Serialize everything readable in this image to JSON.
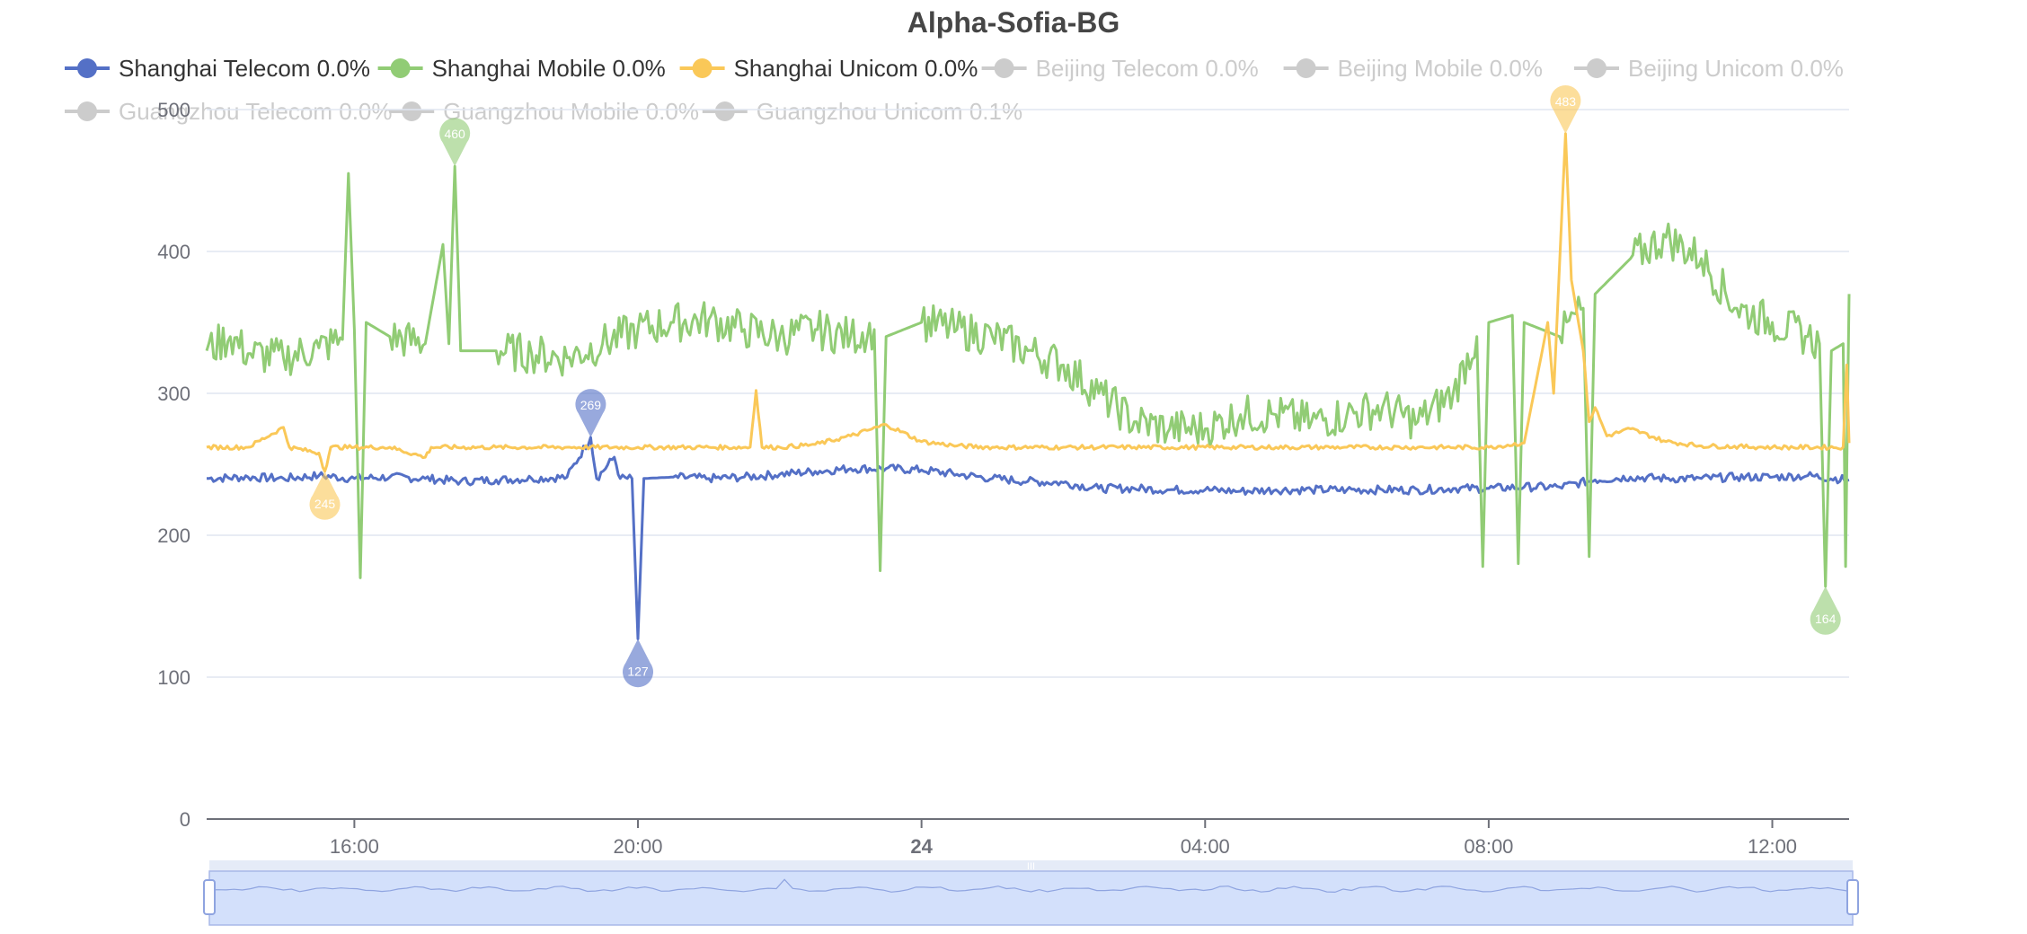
{
  "chart_data": {
    "type": "line",
    "title": "Alpha-Sofia-BG",
    "xlabel": "",
    "ylabel": "",
    "ylim": [
      0,
      500
    ],
    "y_ticks": [
      "0",
      "100",
      "200",
      "300",
      "400",
      "500"
    ],
    "x_range": [
      "13:55",
      "13:05 (+1 day)"
    ],
    "x_ticks": [
      {
        "label": "16:00",
        "x": "16:00",
        "bold": false
      },
      {
        "label": "20:00",
        "x": "20:00",
        "bold": false
      },
      {
        "label": "24",
        "x": "24:00",
        "bold": true
      },
      {
        "label": "04:00",
        "x": "04:00",
        "bold": false
      },
      {
        "label": "08:00",
        "x": "08:00",
        "bold": false
      },
      {
        "label": "12:00",
        "x": "12:00",
        "bold": false
      }
    ],
    "grid": true,
    "legend_position": "top",
    "series": [
      {
        "name": "Shanghai Telecom",
        "legend": "Shanghai Telecom 0.0%",
        "color": "#5470c6",
        "visible": true,
        "points": [
          [
            "13:55",
            240
          ],
          [
            "14:30",
            241
          ],
          [
            "15:00",
            240
          ],
          [
            "15:30",
            242
          ],
          [
            "16:00",
            240
          ],
          [
            "16:30",
            241
          ],
          [
            "17:00",
            240
          ],
          [
            "17:30",
            238
          ],
          [
            "18:00",
            239
          ],
          [
            "18:30",
            240
          ],
          [
            "19:00",
            241
          ],
          [
            "19:20",
            269
          ],
          [
            "19:25",
            240
          ],
          [
            "19:40",
            255
          ],
          [
            "19:45",
            240
          ],
          [
            "19:55",
            240
          ],
          [
            "20:00",
            127
          ],
          [
            "20:05",
            240
          ],
          [
            "20:30",
            241
          ],
          [
            "21:00",
            240
          ],
          [
            "21:30",
            241
          ],
          [
            "22:00",
            243
          ],
          [
            "22:30",
            245
          ],
          [
            "23:00",
            247
          ],
          [
            "23:30",
            247
          ],
          [
            "24:00",
            246
          ],
          [
            "00:30",
            243
          ],
          [
            "01:00",
            240
          ],
          [
            "01:30",
            238
          ],
          [
            "02:00",
            237
          ],
          [
            "02:30",
            233
          ],
          [
            "03:00",
            233
          ],
          [
            "03:30",
            232
          ],
          [
            "04:00",
            232
          ],
          [
            "04:30",
            231
          ],
          [
            "05:00",
            232
          ],
          [
            "05:30",
            232
          ],
          [
            "06:00",
            232
          ],
          [
            "06:30",
            232
          ],
          [
            "07:00",
            232
          ],
          [
            "07:30",
            233
          ],
          [
            "08:00",
            233
          ],
          [
            "08:30",
            234
          ],
          [
            "09:00",
            234
          ],
          [
            "09:30",
            239
          ],
          [
            "10:00",
            241
          ],
          [
            "10:30",
            240
          ],
          [
            "11:00",
            240
          ],
          [
            "11:30",
            241
          ],
          [
            "12:00",
            241
          ],
          [
            "12:30",
            242
          ],
          [
            "13:05",
            239
          ]
        ]
      },
      {
        "name": "Shanghai Mobile",
        "legend": "Shanghai Mobile 0.0%",
        "color": "#91cc75",
        "visible": true,
        "points": [
          [
            "13:55",
            330
          ],
          [
            "14:15",
            340
          ],
          [
            "14:30",
            328
          ],
          [
            "15:00",
            325
          ],
          [
            "15:30",
            332
          ],
          [
            "15:50",
            338
          ],
          [
            "15:55",
            455
          ],
          [
            "16:00",
            345
          ],
          [
            "16:05",
            170
          ],
          [
            "16:10",
            350
          ],
          [
            "16:30",
            340
          ],
          [
            "17:00",
            335
          ],
          [
            "17:15",
            405
          ],
          [
            "17:20",
            335
          ],
          [
            "17:25",
            460
          ],
          [
            "17:30",
            330
          ],
          [
            "18:00",
            330
          ],
          [
            "18:30",
            328
          ],
          [
            "19:00",
            325
          ],
          [
            "19:30",
            335
          ],
          [
            "20:00",
            345
          ],
          [
            "20:30",
            350
          ],
          [
            "21:00",
            352
          ],
          [
            "21:30",
            345
          ],
          [
            "22:00",
            340
          ],
          [
            "22:30",
            345
          ],
          [
            "23:00",
            340
          ],
          [
            "23:20",
            345
          ],
          [
            "23:25",
            175
          ],
          [
            "23:30",
            340
          ],
          [
            "24:00",
            350
          ],
          [
            "00:30",
            345
          ],
          [
            "01:00",
            340
          ],
          [
            "01:30",
            330
          ],
          [
            "02:00",
            320
          ],
          [
            "02:30",
            300
          ],
          [
            "03:00",
            280
          ],
          [
            "03:30",
            275
          ],
          [
            "04:00",
            275
          ],
          [
            "04:30",
            285
          ],
          [
            "05:00",
            285
          ],
          [
            "05:30",
            280
          ],
          [
            "06:00",
            285
          ],
          [
            "06:30",
            290
          ],
          [
            "07:00",
            280
          ],
          [
            "07:30",
            300
          ],
          [
            "07:50",
            340
          ],
          [
            "07:55",
            178
          ],
          [
            "08:00",
            350
          ],
          [
            "08:20",
            355
          ],
          [
            "08:25",
            180
          ],
          [
            "08:30",
            350
          ],
          [
            "09:00",
            340
          ],
          [
            "09:20",
            360
          ],
          [
            "09:25",
            185
          ],
          [
            "09:30",
            370
          ],
          [
            "10:00",
            395
          ],
          [
            "10:30",
            410
          ],
          [
            "11:00",
            395
          ],
          [
            "11:30",
            360
          ],
          [
            "12:00",
            350
          ],
          [
            "12:30",
            340
          ],
          [
            "12:40",
            335
          ],
          [
            "12:45",
            164
          ],
          [
            "12:50",
            330
          ],
          [
            "13:00",
            335
          ],
          [
            "13:02",
            178
          ],
          [
            "13:05",
            370
          ]
        ]
      },
      {
        "name": "Shanghai Unicom",
        "legend": "Shanghai Unicom 0.0%",
        "color": "#fac858",
        "visible": true,
        "points": [
          [
            "13:55",
            262
          ],
          [
            "14:30",
            262
          ],
          [
            "15:00",
            276
          ],
          [
            "15:05",
            262
          ],
          [
            "15:30",
            258
          ],
          [
            "15:35",
            245
          ],
          [
            "15:40",
            262
          ],
          [
            "16:00",
            262
          ],
          [
            "16:30",
            262
          ],
          [
            "17:00",
            255
          ],
          [
            "17:05",
            262
          ],
          [
            "18:00",
            262
          ],
          [
            "19:00",
            262
          ],
          [
            "20:00",
            262
          ],
          [
            "21:00",
            262
          ],
          [
            "21:35",
            262
          ],
          [
            "21:40",
            302
          ],
          [
            "21:45",
            262
          ],
          [
            "22:00",
            262
          ],
          [
            "22:30",
            264
          ],
          [
            "23:00",
            270
          ],
          [
            "23:30",
            278
          ],
          [
            "24:00",
            266
          ],
          [
            "00:30",
            263
          ],
          [
            "01:00",
            262
          ],
          [
            "02:00",
            262
          ],
          [
            "03:00",
            262
          ],
          [
            "04:00",
            262
          ],
          [
            "05:00",
            262
          ],
          [
            "06:00",
            262
          ],
          [
            "07:00",
            262
          ],
          [
            "08:00",
            262
          ],
          [
            "08:30",
            265
          ],
          [
            "08:50",
            350
          ],
          [
            "08:55",
            300
          ],
          [
            "09:05",
            483
          ],
          [
            "09:10",
            380
          ],
          [
            "09:20",
            330
          ],
          [
            "09:25",
            280
          ],
          [
            "09:30",
            290
          ],
          [
            "09:40",
            270
          ],
          [
            "10:00",
            275
          ],
          [
            "10:30",
            266
          ],
          [
            "11:00",
            263
          ],
          [
            "12:00",
            262
          ],
          [
            "13:00",
            262
          ],
          [
            "13:03",
            320
          ],
          [
            "13:05",
            265
          ]
        ]
      },
      {
        "name": "Beijing Telecom",
        "legend": "Beijing Telecom 0.0%",
        "color": "#cccccc",
        "visible": false,
        "points": []
      },
      {
        "name": "Beijing Mobile",
        "legend": "Beijing Mobile 0.0%",
        "color": "#cccccc",
        "visible": false,
        "points": []
      },
      {
        "name": "Beijing Unicom",
        "legend": "Beijing Unicom 0.0%",
        "color": "#cccccc",
        "visible": false,
        "points": []
      },
      {
        "name": "Guangzhou Telecom",
        "legend": "Guangzhou Telecom 0.0%",
        "color": "#cccccc",
        "visible": false,
        "points": []
      },
      {
        "name": "Guangzhou Mobile",
        "legend": "Guangzhou Mobile 0.0%",
        "color": "#cccccc",
        "visible": false,
        "points": []
      },
      {
        "name": "Guangzhou Unicom",
        "legend": "Guangzhou Unicom 0.1%",
        "color": "#cccccc",
        "visible": false,
        "points": []
      }
    ],
    "markers": [
      {
        "series": "Shanghai Telecom",
        "label": "269",
        "x": "19:20",
        "y": 269,
        "type": "max"
      },
      {
        "series": "Shanghai Telecom",
        "label": "127",
        "x": "20:00",
        "y": 127,
        "type": "min"
      },
      {
        "series": "Shanghai Mobile",
        "label": "460",
        "x": "17:25",
        "y": 460,
        "type": "max"
      },
      {
        "series": "Shanghai Mobile",
        "label": "164",
        "x": "12:45",
        "y": 164,
        "type": "min"
      },
      {
        "series": "Shanghai Unicom",
        "label": "483",
        "x": "09:05",
        "y": 483,
        "type": "max"
      },
      {
        "series": "Shanghai Unicom",
        "label": "245",
        "x": "15:35",
        "y": 245,
        "type": "min"
      }
    ],
    "data_zoom": {
      "start_percent": 0,
      "end_percent": 100,
      "handle_label": "III"
    }
  }
}
